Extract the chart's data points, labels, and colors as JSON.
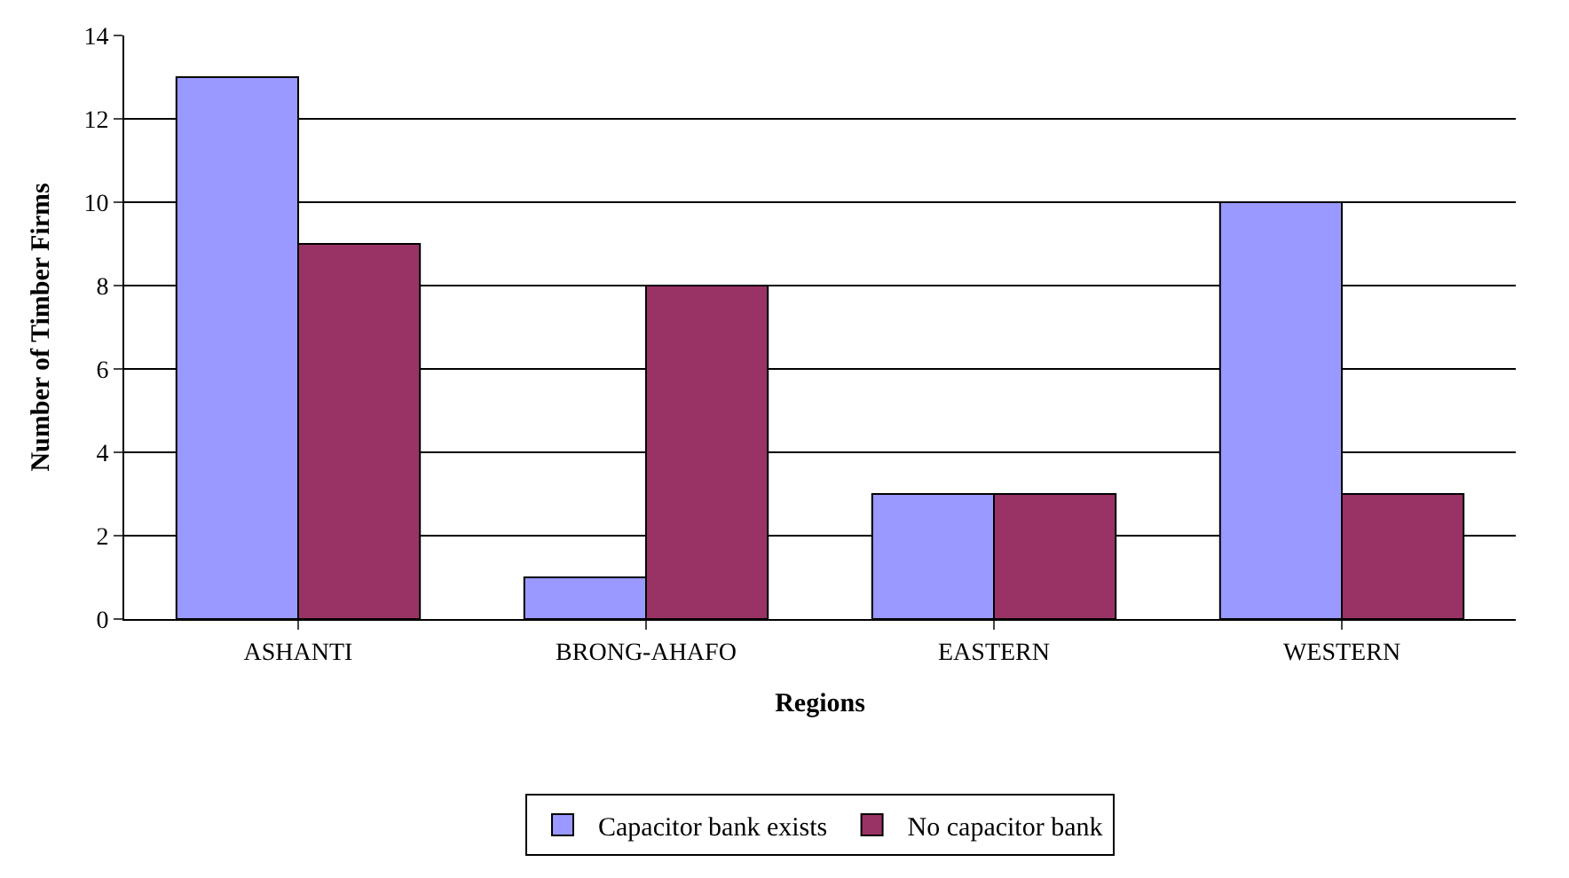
{
  "chart_data": {
    "type": "bar",
    "xlabel": "Regions",
    "ylabel": "Number of Timber Firms",
    "categories": [
      "ASHANTI",
      "BRONG-AHAFO",
      "EASTERN",
      "WESTERN"
    ],
    "series": [
      {
        "name": "Capacitor bank exists",
        "color": "#9999ff",
        "values": [
          13,
          1,
          3,
          10
        ]
      },
      {
        "name": "No capacitor bank",
        "color": "#993366",
        "values": [
          9,
          8,
          3,
          3
        ]
      }
    ],
    "ylim": [
      0,
      14
    ],
    "yticks": [
      0,
      2,
      4,
      6,
      8,
      10,
      12,
      14
    ],
    "grid": "y",
    "legend": "bottom"
  }
}
